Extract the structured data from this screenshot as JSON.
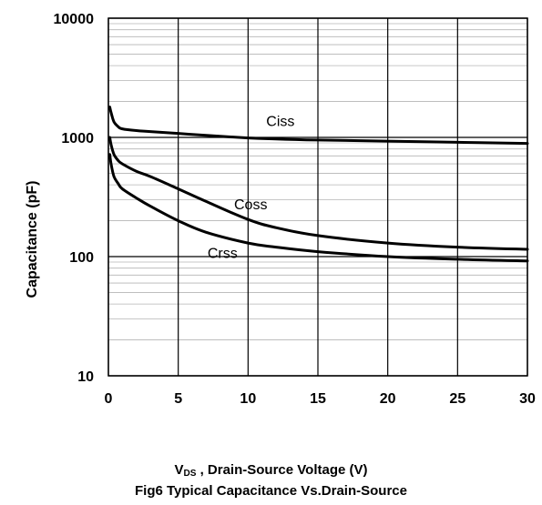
{
  "chart_data": {
    "type": "line",
    "title": "Fig6 Typical Capacitance Vs.Drain-Source",
    "xlabel": {
      "main": "V",
      "sub": "DS",
      "rest": " , Drain-Source Voltage (V)"
    },
    "ylabel": "Capacitance (pF)",
    "xlim": [
      0,
      30
    ],
    "ylim": [
      10,
      10000
    ],
    "yscale": "log",
    "xticks": [
      0,
      5,
      10,
      15,
      20,
      25,
      30
    ],
    "yticks": [
      10,
      100,
      1000,
      10000
    ],
    "ytick_labels": [
      "10",
      "100",
      "1000",
      "10000"
    ],
    "grid": true,
    "legend": "inline labels",
    "series": [
      {
        "name": "Ciss",
        "x": [
          0.1,
          0.2,
          0.4,
          0.7,
          1,
          2,
          3,
          5,
          7,
          10,
          12,
          15,
          20,
          25,
          30
        ],
        "y": [
          1800,
          1600,
          1350,
          1230,
          1180,
          1140,
          1120,
          1080,
          1040,
          990,
          970,
          950,
          930,
          910,
          890
        ]
      },
      {
        "name": "Coss",
        "x": [
          0.1,
          0.2,
          0.4,
          0.7,
          1,
          2,
          3,
          5,
          7,
          10,
          12,
          15,
          20,
          25,
          30
        ],
        "y": [
          1000,
          860,
          720,
          640,
          600,
          520,
          470,
          370,
          290,
          205,
          175,
          150,
          130,
          120,
          115
        ]
      },
      {
        "name": "Crss",
        "x": [
          0.1,
          0.2,
          0.4,
          0.7,
          1,
          2,
          3,
          5,
          7,
          10,
          12,
          15,
          20,
          25,
          30
        ],
        "y": [
          720,
          590,
          470,
          410,
          370,
          310,
          265,
          200,
          160,
          130,
          120,
          110,
          100,
          95,
          92
        ]
      }
    ]
  }
}
